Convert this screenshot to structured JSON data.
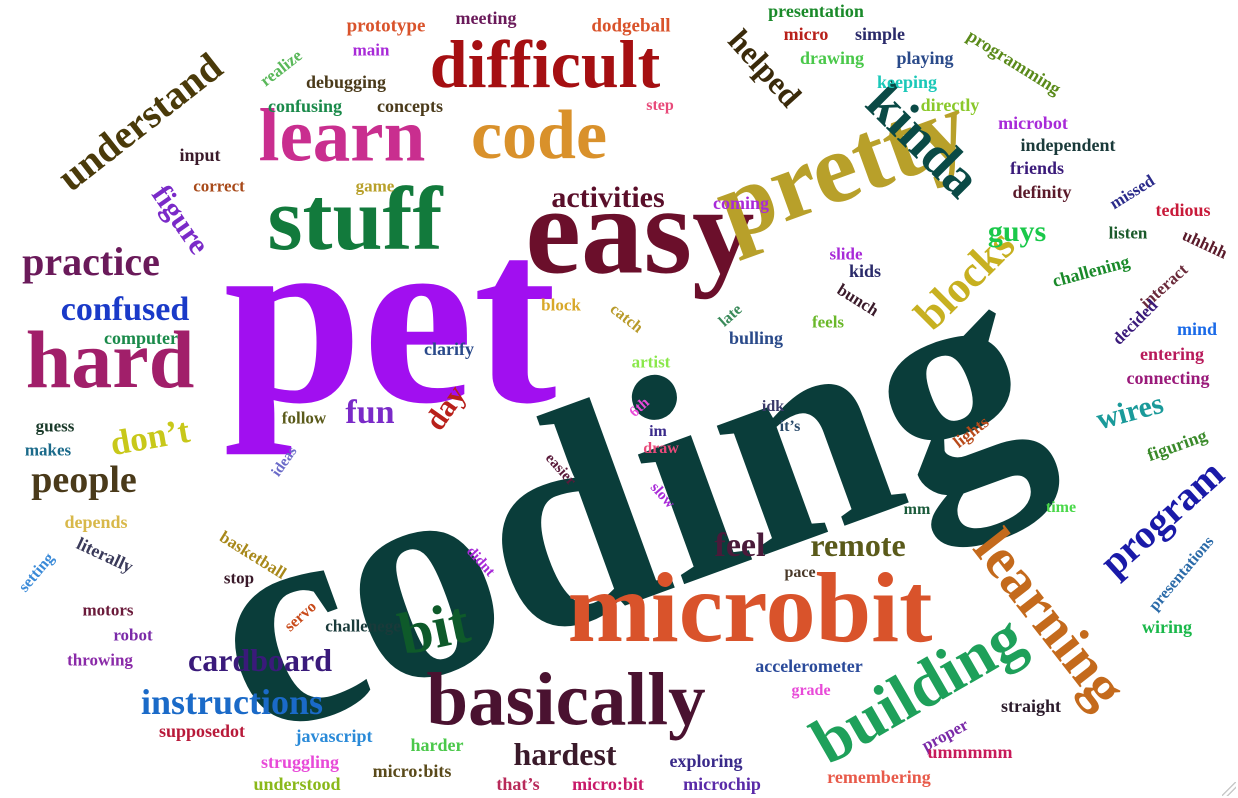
{
  "word_cloud": {
    "words": [
      {
        "text": "coding",
        "color": "#0a3d3a"
      },
      {
        "text": "pet",
        "color": "#a10ff0"
      },
      {
        "text": "easy",
        "color": "#6b0f2b"
      },
      {
        "text": "pretty",
        "color": "#b8a02a"
      },
      {
        "text": "microbit",
        "color": "#d9532b"
      },
      {
        "text": "stuff",
        "color": "#127a3c"
      },
      {
        "text": "learn",
        "color": "#c92e8f"
      },
      {
        "text": "code",
        "color": "#d9912b"
      },
      {
        "text": "difficult",
        "color": "#a50f12"
      },
      {
        "text": "hard",
        "color": "#a11f6a"
      },
      {
        "text": "basically",
        "color": "#4a1230"
      },
      {
        "text": "building",
        "color": "#1ea05a"
      },
      {
        "text": "learning",
        "color": "#c46a1c"
      },
      {
        "text": "kinda",
        "color": "#0a4a46"
      },
      {
        "text": "bit",
        "color": "#0e5a2a"
      },
      {
        "text": "blocks",
        "color": "#c7b020"
      },
      {
        "text": "program",
        "color": "#1a1aa8"
      },
      {
        "text": "understand",
        "color": "#4a3a0a"
      },
      {
        "text": "practice",
        "color": "#6a1a5a"
      },
      {
        "text": "confused",
        "color": "#1a3ac8"
      },
      {
        "text": "figure",
        "color": "#7a2ac8"
      },
      {
        "text": "activities",
        "color": "#5a0f2a"
      },
      {
        "text": "helped",
        "color": "#3a2a0a"
      },
      {
        "text": "people",
        "color": "#4a3a1a"
      },
      {
        "text": "don’t",
        "color": "#c8c81a"
      },
      {
        "text": "instructions",
        "color": "#1a6ac8"
      },
      {
        "text": "cardboard",
        "color": "#3a1a7a"
      },
      {
        "text": "fun",
        "color": "#7a2ac8"
      },
      {
        "text": "day",
        "color": "#b8201a"
      },
      {
        "text": "feel",
        "color": "#4a1a3a"
      },
      {
        "text": "remote",
        "color": "#5a5a1a"
      },
      {
        "text": "hardest",
        "color": "#3a1a2a"
      },
      {
        "text": "guys",
        "color": "#1ac84a"
      },
      {
        "text": "wires",
        "color": "#1a9a9a"
      },
      {
        "text": "prototype",
        "color": "#d9532b"
      },
      {
        "text": "meeting",
        "color": "#6a1a5a"
      },
      {
        "text": "dodgeball",
        "color": "#d9532b"
      },
      {
        "text": "presentation",
        "color": "#1a8a2a"
      },
      {
        "text": "micro",
        "color": "#b8201a"
      },
      {
        "text": "simple",
        "color": "#2a2a6a"
      },
      {
        "text": "programming",
        "color": "#5a8a1a"
      },
      {
        "text": "drawing",
        "color": "#4ac84a"
      },
      {
        "text": "playing",
        "color": "#2a4a8a"
      },
      {
        "text": "realize",
        "color": "#5ab85a"
      },
      {
        "text": "main",
        "color": "#a82ad8"
      },
      {
        "text": "debugging",
        "color": "#4a3a1a"
      },
      {
        "text": "keeping",
        "color": "#1ac8b8"
      },
      {
        "text": "directly",
        "color": "#8ac82a"
      },
      {
        "text": "confusing",
        "color": "#1a8a4a"
      },
      {
        "text": "concepts",
        "color": "#4a3a1a"
      },
      {
        "text": "step",
        "color": "#e84a7a"
      },
      {
        "text": "microbot",
        "color": "#a82ad8"
      },
      {
        "text": "independent",
        "color": "#1a3a3a"
      },
      {
        "text": "friends",
        "color": "#3a1a7a"
      },
      {
        "text": "definity",
        "color": "#5a1a2a"
      },
      {
        "text": "missed",
        "color": "#2a2a8a"
      },
      {
        "text": "tedious",
        "color": "#c81a3a"
      },
      {
        "text": "input",
        "color": "#3a1a2a"
      },
      {
        "text": "correct",
        "color": "#a84a1a"
      },
      {
        "text": "game",
        "color": "#b8a02a"
      },
      {
        "text": "coming",
        "color": "#a82ad8"
      },
      {
        "text": "listen",
        "color": "#1a5a2a"
      },
      {
        "text": "uhhhh",
        "color": "#5a1a2a"
      },
      {
        "text": "slide",
        "color": "#a82ad8"
      },
      {
        "text": "kids",
        "color": "#2a2a6a"
      },
      {
        "text": "challening",
        "color": "#1a8a2a"
      },
      {
        "text": "interact",
        "color": "#6a2a3a"
      },
      {
        "text": "decided",
        "color": "#3a1a7a"
      },
      {
        "text": "mind",
        "color": "#1a6ae8"
      },
      {
        "text": "entering",
        "color": "#b81a5a"
      },
      {
        "text": "connecting",
        "color": "#9a1a7a"
      },
      {
        "text": "block",
        "color": "#d8a82a"
      },
      {
        "text": "catch",
        "color": "#b89a2a"
      },
      {
        "text": "late",
        "color": "#3a8a5a"
      },
      {
        "text": "bunch",
        "color": "#3a1a2a"
      },
      {
        "text": "feels",
        "color": "#6ab82a"
      },
      {
        "text": "bulling",
        "color": "#2a4a8a"
      },
      {
        "text": "computer",
        "color": "#1a8a4a"
      },
      {
        "text": "clarify",
        "color": "#2a4a8a"
      },
      {
        "text": "artist",
        "color": "#8ae84a"
      },
      {
        "text": "guess",
        "color": "#1a3a2a"
      },
      {
        "text": "makes",
        "color": "#1a6a8a"
      },
      {
        "text": "follow",
        "color": "#5a5a1a"
      },
      {
        "text": "ideas",
        "color": "#6a6ac8"
      },
      {
        "text": "6th",
        "color": "#e84ad8"
      },
      {
        "text": "im",
        "color": "#3a2a8a"
      },
      {
        "text": "draw",
        "color": "#e84a7a"
      },
      {
        "text": "easier",
        "color": "#5a1a3a"
      },
      {
        "text": "slow",
        "color": "#a82ad8"
      },
      {
        "text": "idk",
        "color": "#3a3a6a"
      },
      {
        "text": "it’s",
        "color": "#2a4a6a"
      },
      {
        "text": "lights",
        "color": "#b84a1a"
      },
      {
        "text": "figuring",
        "color": "#3a8a2a"
      },
      {
        "text": "time",
        "color": "#4ad84a"
      },
      {
        "text": "mm",
        "color": "#1a5a3a"
      },
      {
        "text": "depends",
        "color": "#d8b84a"
      },
      {
        "text": "literally",
        "color": "#3a3a5a"
      },
      {
        "text": "setting",
        "color": "#3a8ad8"
      },
      {
        "text": "basketball",
        "color": "#a8881a"
      },
      {
        "text": "stop",
        "color": "#3a1a2a"
      },
      {
        "text": "didnt",
        "color": "#a82ad8"
      },
      {
        "text": "pace",
        "color": "#4a3a2a"
      },
      {
        "text": "servo",
        "color": "#c84a1a"
      },
      {
        "text": "motors",
        "color": "#6a1a3a"
      },
      {
        "text": "robot",
        "color": "#7a2aa8"
      },
      {
        "text": "challenege",
        "color": "#1a3a3a"
      },
      {
        "text": "throwing",
        "color": "#8a2aa8"
      },
      {
        "text": "accelerometer",
        "color": "#2a4a9a"
      },
      {
        "text": "grade",
        "color": "#e84ad8"
      },
      {
        "text": "wiring",
        "color": "#1ab84a"
      },
      {
        "text": "presentations",
        "color": "#2a6aa8"
      },
      {
        "text": "supposedot",
        "color": "#b81a3a"
      },
      {
        "text": "javascript",
        "color": "#2a8ad8"
      },
      {
        "text": "harder",
        "color": "#4ac84a"
      },
      {
        "text": "exploring",
        "color": "#3a2a8a"
      },
      {
        "text": "proper",
        "color": "#7a2aa8"
      },
      {
        "text": "straight",
        "color": "#2a1a2a"
      },
      {
        "text": "ummmmm",
        "color": "#c81a5a"
      },
      {
        "text": "struggling",
        "color": "#e84ad8"
      },
      {
        "text": "understood",
        "color": "#8ab81a"
      },
      {
        "text": "micro:bits",
        "color": "#5a4a1a"
      },
      {
        "text": "that’s",
        "color": "#b82a5a"
      },
      {
        "text": "micro:bit",
        "color": "#c81a6a"
      },
      {
        "text": "microchip",
        "color": "#5a2aa8"
      },
      {
        "text": "remembering",
        "color": "#e85a4a"
      }
    ]
  }
}
